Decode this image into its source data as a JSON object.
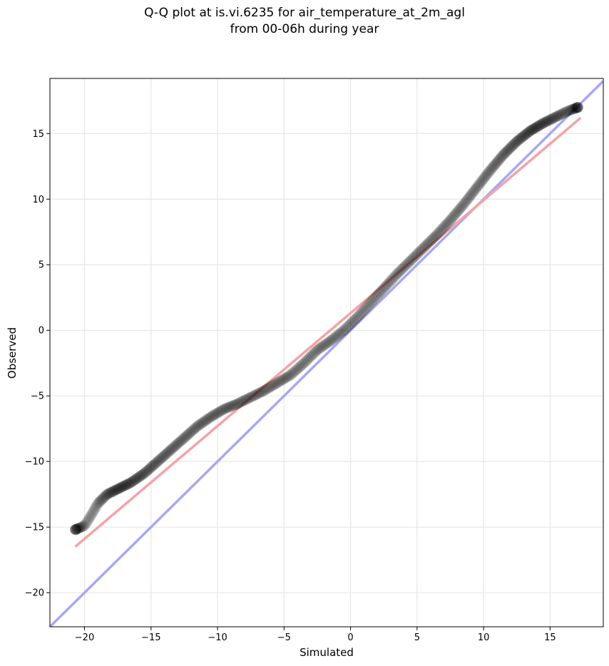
{
  "chart_data": {
    "type": "scatter",
    "title": [
      "Q-Q plot at is.vi.6235 for air_temperature_at_2m_agl",
      "from 00-06h during year"
    ],
    "xlabel": "Simulated",
    "ylabel": "Observed",
    "xlim": [
      -22.6,
      19.0
    ],
    "ylim": [
      -22.6,
      19.2
    ],
    "xticks": [
      -20,
      -15,
      -10,
      -5,
      0,
      5,
      10,
      15
    ],
    "yticks": [
      -20,
      -15,
      -10,
      -5,
      0,
      5,
      10,
      15
    ],
    "xtick_labels": [
      "−20",
      "−15",
      "−10",
      "−5",
      "0",
      "5",
      "10",
      "15"
    ],
    "ytick_labels": [
      "−20",
      "−15",
      "−10",
      "−5",
      "0",
      "5",
      "10",
      "15"
    ],
    "grid": true,
    "colors": {
      "points": "#000000",
      "fit_line": "#f4a3a6",
      "identity_line": "#a6a8f4"
    },
    "quantile_curve": [
      [
        -20.7,
        -15.2
      ],
      [
        -20.0,
        -14.9
      ],
      [
        -19.5,
        -14.1
      ],
      [
        -19.0,
        -13.2
      ],
      [
        -18.3,
        -12.5
      ],
      [
        -17.5,
        -12.1
      ],
      [
        -16.5,
        -11.6
      ],
      [
        -15.5,
        -10.9
      ],
      [
        -14.5,
        -10.0
      ],
      [
        -13.5,
        -9.1
      ],
      [
        -12.5,
        -8.2
      ],
      [
        -11.5,
        -7.3
      ],
      [
        -10.5,
        -6.6
      ],
      [
        -9.5,
        -6.0
      ],
      [
        -8.5,
        -5.6
      ],
      [
        -7.5,
        -5.1
      ],
      [
        -6.5,
        -4.6
      ],
      [
        -5.5,
        -4.0
      ],
      [
        -4.5,
        -3.4
      ],
      [
        -3.5,
        -2.5
      ],
      [
        -2.5,
        -1.5
      ],
      [
        -1.5,
        -0.8
      ],
      [
        -0.5,
        0.0
      ],
      [
        0.5,
        1.0
      ],
      [
        1.5,
        2.1
      ],
      [
        2.5,
        3.2
      ],
      [
        3.5,
        4.3
      ],
      [
        4.5,
        5.3
      ],
      [
        5.5,
        6.3
      ],
      [
        6.5,
        7.3
      ],
      [
        7.5,
        8.4
      ],
      [
        8.5,
        9.6
      ],
      [
        9.5,
        10.9
      ],
      [
        10.5,
        12.2
      ],
      [
        11.5,
        13.4
      ],
      [
        12.5,
        14.4
      ],
      [
        13.5,
        15.2
      ],
      [
        14.5,
        15.8
      ],
      [
        15.5,
        16.3
      ],
      [
        16.3,
        16.7
      ],
      [
        17.1,
        17.0
      ]
    ],
    "fit_line": [
      [
        -20.7,
        -16.5
      ],
      [
        17.3,
        16.2
      ]
    ],
    "identity_line": [
      [
        -22.6,
        -22.6
      ],
      [
        19.0,
        19.0
      ]
    ]
  }
}
